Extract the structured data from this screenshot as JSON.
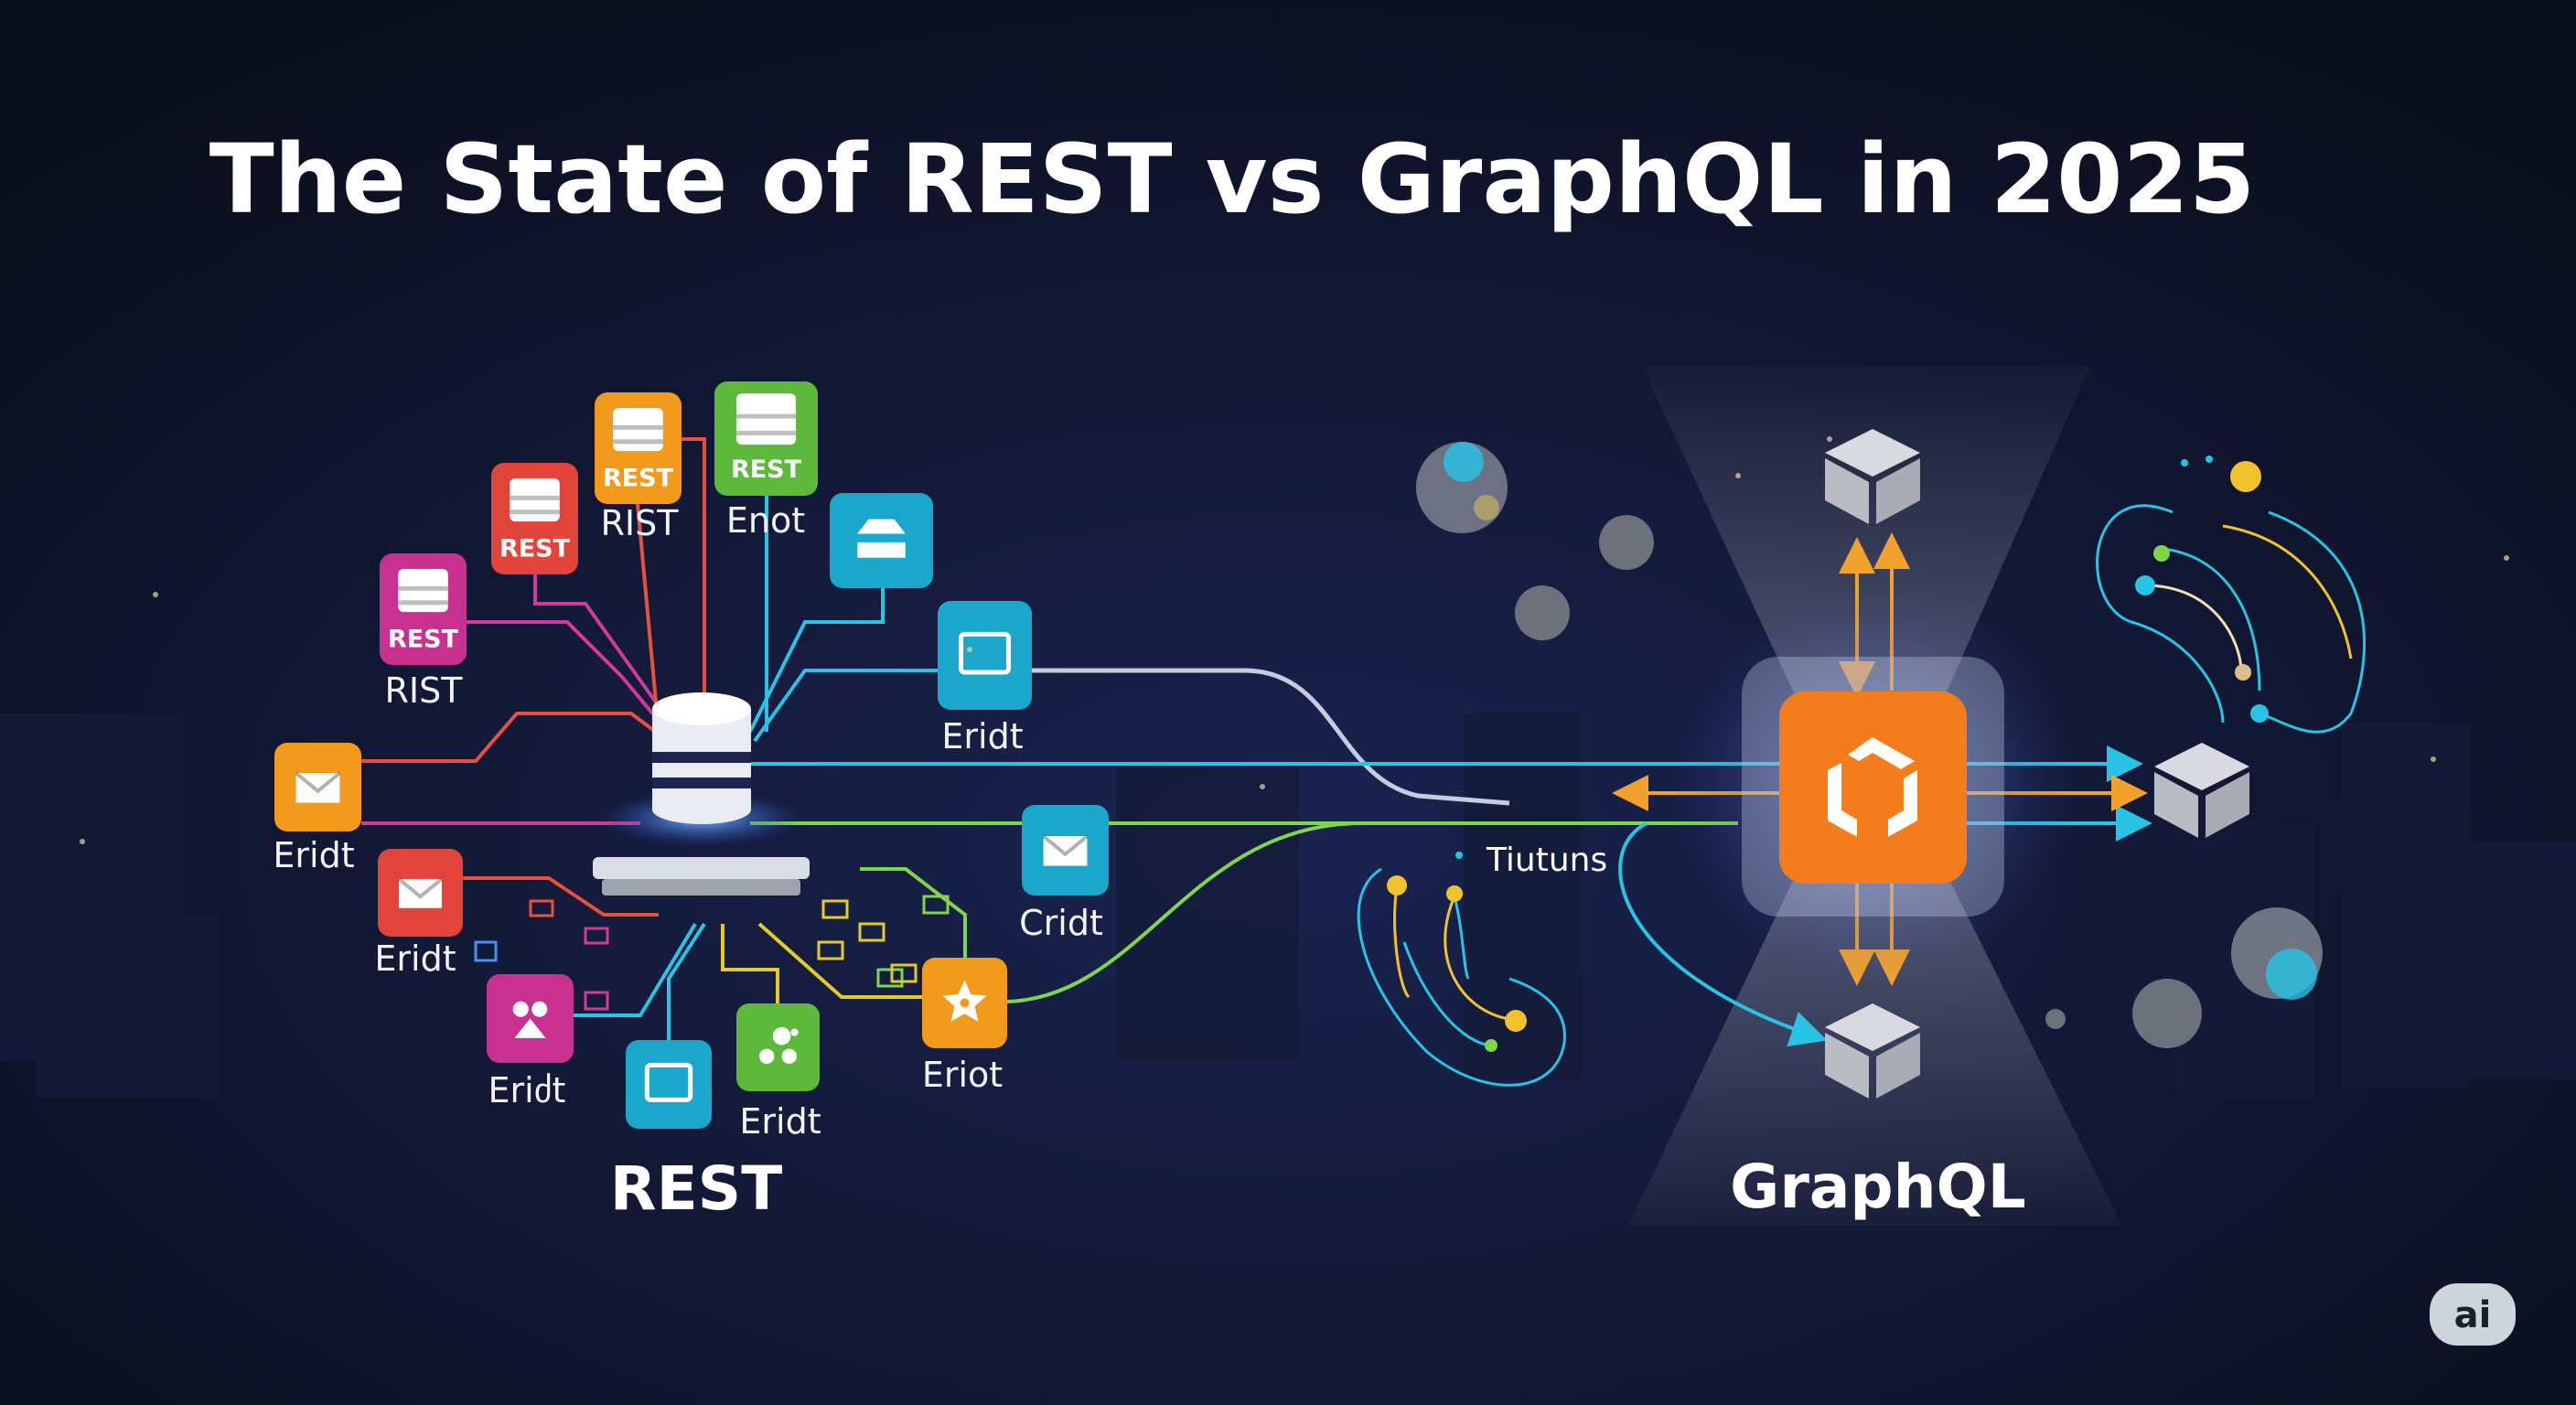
{
  "title": "The State of REST vs GraphQL in 2025",
  "rest": {
    "label": "REST",
    "top_tiles": [
      {
        "badge": "REST",
        "label": "RIST",
        "color": "#c8318f",
        "icon": "database-icon"
      },
      {
        "badge": "REST",
        "label": "",
        "color": "#e0443a",
        "icon": "database-icon"
      },
      {
        "badge": "REST",
        "label": "RIST",
        "color": "#f29a1b",
        "icon": "database-icon"
      },
      {
        "badge": "REST",
        "label": "Enot",
        "color": "#5cb93c",
        "icon": "database-icon"
      },
      {
        "badge": "",
        "label": "",
        "color": "#1ba6cc",
        "icon": "router-icon"
      },
      {
        "badge": "",
        "label": "Eridt",
        "color": "#1ba6cc",
        "icon": "monitor-icon"
      }
    ],
    "bottom_tiles": [
      {
        "label": "Eridt",
        "color": "#f29a1b",
        "icon": "mail-icon"
      },
      {
        "label": "Eridt",
        "color": "#e0443a",
        "icon": "envelope-open-icon"
      },
      {
        "label": "Eriძt",
        "color": "#c8318f",
        "icon": "paw-icon"
      },
      {
        "label": "",
        "color": "#1ba6cc",
        "icon": "screen-icon"
      },
      {
        "label": "Eridt",
        "color": "#5cb93c",
        "icon": "dots-icon"
      },
      {
        "label": "Eriot",
        "color": "#f29a1b",
        "icon": "star-icon"
      },
      {
        "label": "Cridt",
        "color": "#1ba6cc",
        "icon": "mail-icon"
      }
    ]
  },
  "graphql": {
    "label": "GraphQL",
    "hub_color": "#f47c1c",
    "hub_icon": "graphql-hexagon-icon",
    "node_icon": "cube-icon",
    "annotation": "Tiutuns"
  },
  "badge": "ai",
  "colors": {
    "background": "#0c1120",
    "cyan": "#29c3e6",
    "green": "#7fd64a",
    "orange": "#f2a22c"
  }
}
